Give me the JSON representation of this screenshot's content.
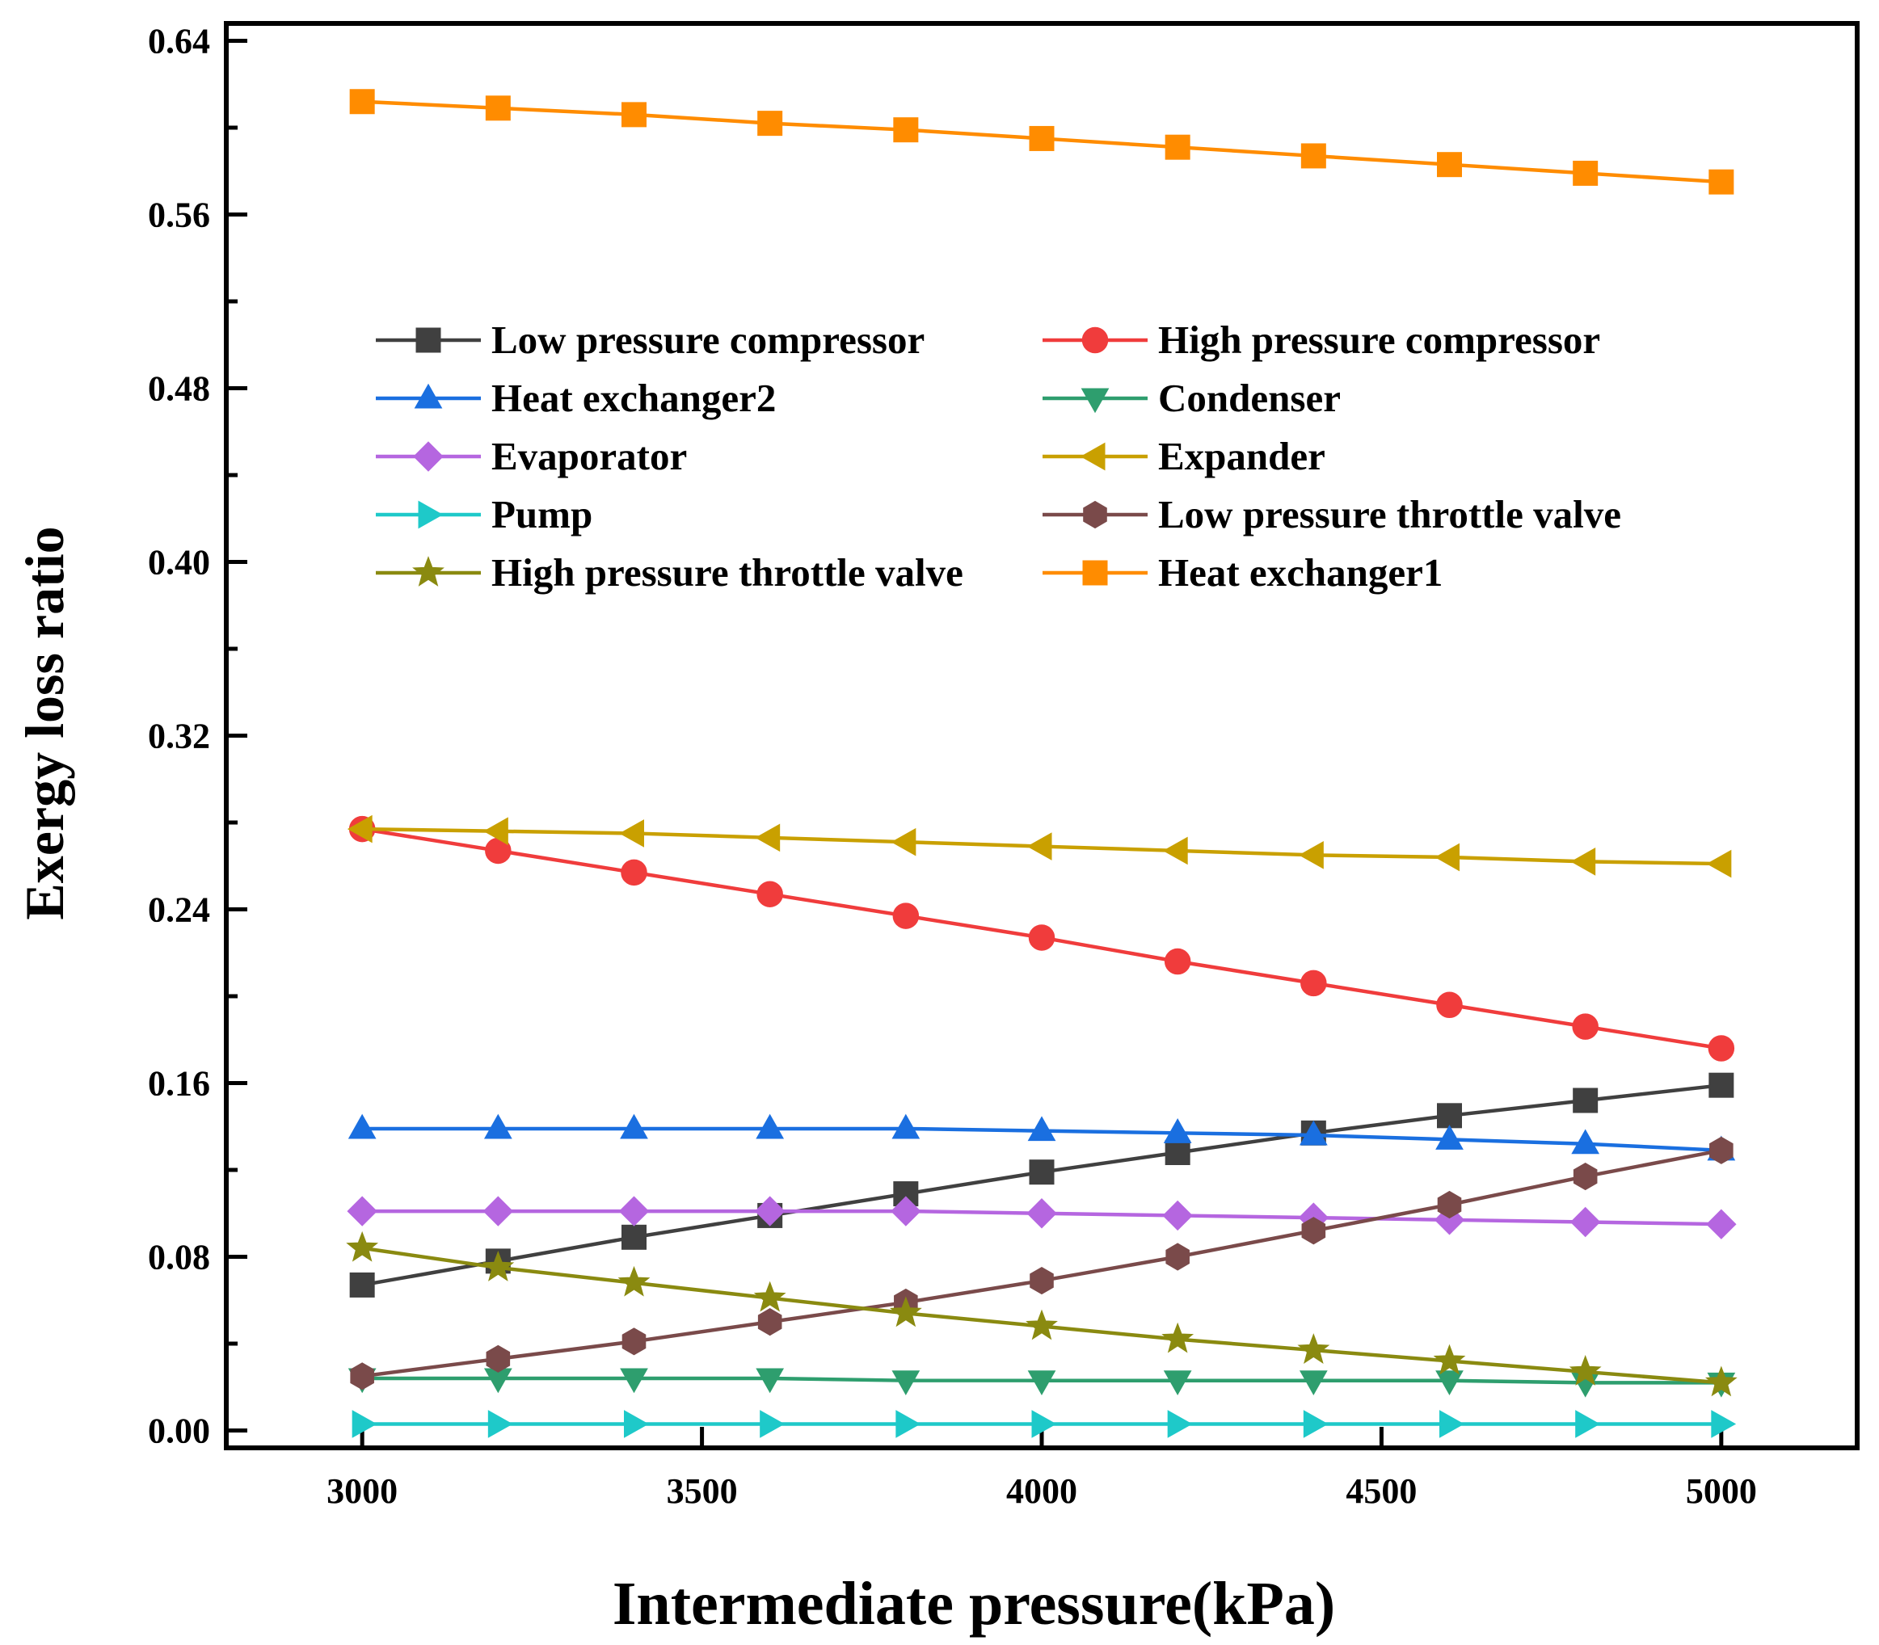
{
  "chart_data": {
    "type": "line",
    "xlabel": "Intermediate pressure(kPa)",
    "ylabel": "Exergy loss ratio",
    "xlim": [
      2800,
      5200
    ],
    "ylim": [
      -0.008,
      0.648
    ],
    "xticks": [
      3000,
      3500,
      4000,
      4500,
      5000
    ],
    "xtick_labels": [
      "3000",
      "3500",
      "4000",
      "4500",
      "5000"
    ],
    "yticks": [
      0.0,
      0.08,
      0.16,
      0.24,
      0.32,
      0.4,
      0.48,
      0.56,
      0.64
    ],
    "ytick_labels": [
      "0.00",
      "0.08",
      "0.16",
      "0.24",
      "0.32",
      "0.40",
      "0.48",
      "0.56",
      "0.64"
    ],
    "grid": false,
    "legend_position": "center",
    "x": [
      3000,
      3200,
      3400,
      3600,
      3800,
      4000,
      4200,
      4400,
      4600,
      4800,
      5000
    ],
    "series": [
      {
        "name": "Low pressure compressor",
        "color": "#404040",
        "marker": "square",
        "values": [
          0.067,
          0.078,
          0.089,
          0.099,
          0.109,
          0.119,
          0.128,
          0.137,
          0.145,
          0.152,
          0.159
        ]
      },
      {
        "name": "High pressure compressor",
        "color": "#f03c3c",
        "marker": "circle",
        "values": [
          0.277,
          0.267,
          0.257,
          0.247,
          0.237,
          0.227,
          0.216,
          0.206,
          0.196,
          0.186,
          0.176
        ]
      },
      {
        "name": "Heat exchanger2",
        "color": "#1a6fe0",
        "marker": "triangle-up",
        "values": [
          0.139,
          0.139,
          0.139,
          0.139,
          0.139,
          0.138,
          0.137,
          0.136,
          0.134,
          0.132,
          0.129
        ]
      },
      {
        "name": "Condenser",
        "color": "#2e9e6e",
        "marker": "triangle-down",
        "values": [
          0.024,
          0.024,
          0.024,
          0.024,
          0.023,
          0.023,
          0.023,
          0.023,
          0.023,
          0.022,
          0.022
        ]
      },
      {
        "name": "Evaporator",
        "color": "#b566e0",
        "marker": "diamond",
        "values": [
          0.101,
          0.101,
          0.101,
          0.101,
          0.101,
          0.1,
          0.099,
          0.098,
          0.097,
          0.096,
          0.095
        ]
      },
      {
        "name": "Expander",
        "color": "#c9a000",
        "marker": "triangle-left",
        "values": [
          0.277,
          0.276,
          0.275,
          0.273,
          0.271,
          0.269,
          0.267,
          0.265,
          0.264,
          0.262,
          0.261
        ]
      },
      {
        "name": "Pump",
        "color": "#1ec9c9",
        "marker": "triangle-right",
        "values": [
          0.003,
          0.003,
          0.003,
          0.003,
          0.003,
          0.003,
          0.003,
          0.003,
          0.003,
          0.003,
          0.003
        ]
      },
      {
        "name": "Low pressure throttle valve",
        "color": "#7a4a4a",
        "marker": "hexagon",
        "values": [
          0.025,
          0.033,
          0.041,
          0.05,
          0.059,
          0.069,
          0.08,
          0.092,
          0.104,
          0.117,
          0.129
        ]
      },
      {
        "name": "High pressure throttle valve",
        "color": "#8a8a10",
        "marker": "star",
        "values": [
          0.084,
          0.075,
          0.068,
          0.061,
          0.054,
          0.048,
          0.042,
          0.037,
          0.032,
          0.027,
          0.022
        ]
      },
      {
        "name": "Heat exchanger1",
        "color": "#ff8c00",
        "marker": "square",
        "values": [
          0.612,
          0.609,
          0.606,
          0.602,
          0.599,
          0.595,
          0.591,
          0.587,
          0.583,
          0.579,
          0.575
        ]
      }
    ]
  }
}
